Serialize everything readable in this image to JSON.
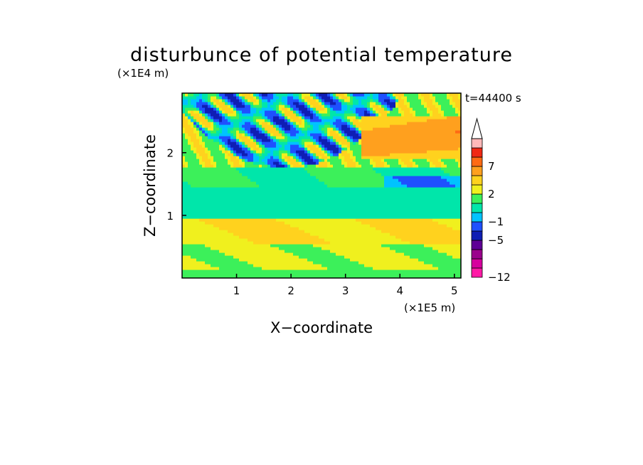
{
  "chart_data": {
    "type": "heatmap",
    "title": "disturbunce of potential temperature",
    "xlabel": "X−coordinate",
    "ylabel": "Z−coordinate",
    "x_unit": "(×1E5 m)",
    "y_unit": "(×1E4 m)",
    "time_label": "t=44400 s",
    "xlim": [
      0,
      5.12
    ],
    "ylim": [
      0,
      2.95
    ],
    "x_ticks": [
      "1",
      "2",
      "3",
      "4",
      "5"
    ],
    "y_ticks": [
      "1",
      "2"
    ],
    "colorbar": {
      "tick_labels": [
        "7",
        "2",
        "−1",
        "−5",
        "−12"
      ],
      "levels": [
        -12,
        -10,
        -8,
        -6,
        -5,
        -3,
        -1,
        0,
        1,
        2,
        3,
        5,
        7,
        9,
        12
      ],
      "colors": [
        "#ff1aa6",
        "#d6009e",
        "#9a008c",
        "#5e0096",
        "#0f1eb4",
        "#1f50ff",
        "#00c3ff",
        "#00e6aa",
        "#3cf05a",
        "#f0f01e",
        "#ffd21e",
        "#ffa01e",
        "#ff6a14",
        "#f02814",
        "#ffb9b9"
      ],
      "extend": "max"
    },
    "regions": [
      {
        "z_range": [
          0,
          0.15
        ],
        "value": 1.5
      },
      {
        "z_range": [
          0.15,
          0.55
        ],
        "value": 2.2
      },
      {
        "z_range": [
          0.55,
          0.95
        ],
        "value": 3.0
      },
      {
        "z_range": [
          0.95,
          1.45
        ],
        "value": 0.6
      },
      {
        "z_range": [
          1.45,
          1.7
        ],
        "value": 1.2
      },
      {
        "z_range": [
          1.7,
          2.95
        ],
        "value": "oscillating"
      }
    ]
  }
}
